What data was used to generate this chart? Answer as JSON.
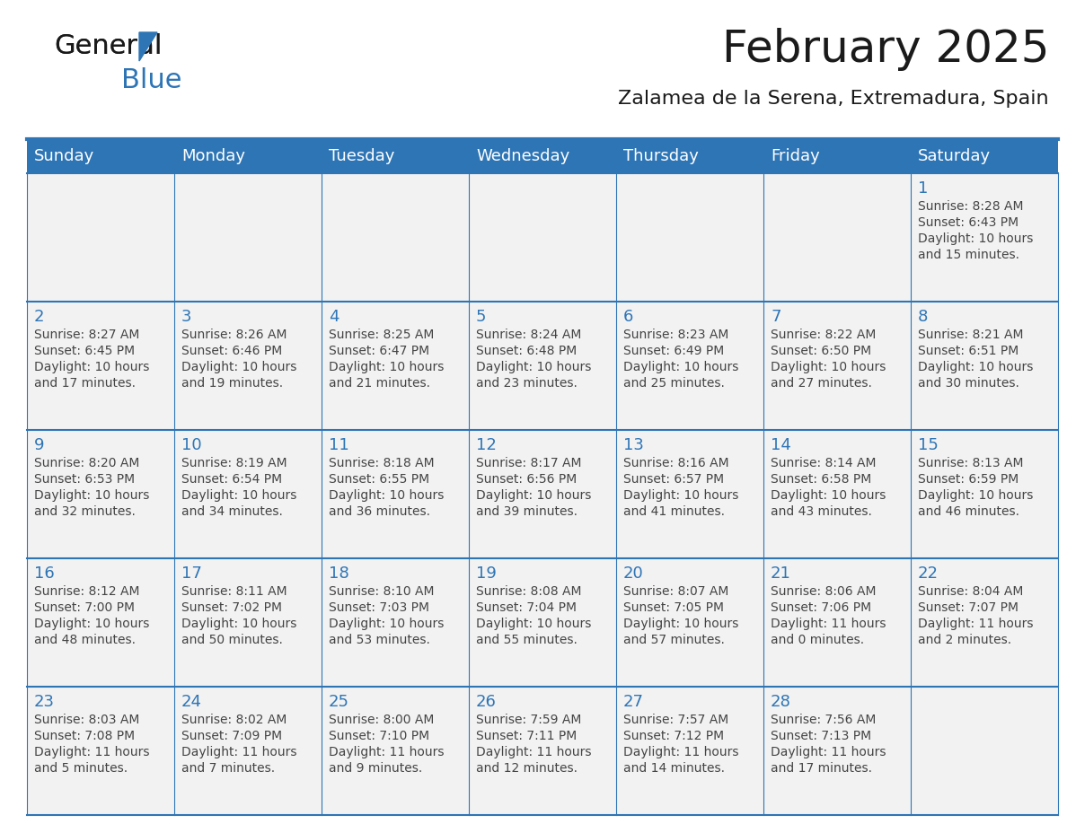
{
  "title": "February 2025",
  "subtitle": "Zalamea de la Serena, Extremadura, Spain",
  "header_bg": "#2E75B6",
  "header_text": "#FFFFFF",
  "cell_bg_light": "#F2F2F2",
  "cell_bg_white": "#FFFFFF",
  "text_color": "#333333",
  "days_of_week": [
    "Sunday",
    "Monday",
    "Tuesday",
    "Wednesday",
    "Thursday",
    "Friday",
    "Saturday"
  ],
  "calendar_data": [
    [
      null,
      null,
      null,
      null,
      null,
      null,
      {
        "day": "1",
        "sunrise": "8:28 AM",
        "sunset": "6:43 PM",
        "daylight_line1": "Daylight: 10 hours",
        "daylight_line2": "and 15 minutes."
      }
    ],
    [
      {
        "day": "2",
        "sunrise": "8:27 AM",
        "sunset": "6:45 PM",
        "daylight_line1": "Daylight: 10 hours",
        "daylight_line2": "and 17 minutes."
      },
      {
        "day": "3",
        "sunrise": "8:26 AM",
        "sunset": "6:46 PM",
        "daylight_line1": "Daylight: 10 hours",
        "daylight_line2": "and 19 minutes."
      },
      {
        "day": "4",
        "sunrise": "8:25 AM",
        "sunset": "6:47 PM",
        "daylight_line1": "Daylight: 10 hours",
        "daylight_line2": "and 21 minutes."
      },
      {
        "day": "5",
        "sunrise": "8:24 AM",
        "sunset": "6:48 PM",
        "daylight_line1": "Daylight: 10 hours",
        "daylight_line2": "and 23 minutes."
      },
      {
        "day": "6",
        "sunrise": "8:23 AM",
        "sunset": "6:49 PM",
        "daylight_line1": "Daylight: 10 hours",
        "daylight_line2": "and 25 minutes."
      },
      {
        "day": "7",
        "sunrise": "8:22 AM",
        "sunset": "6:50 PM",
        "daylight_line1": "Daylight: 10 hours",
        "daylight_line2": "and 27 minutes."
      },
      {
        "day": "8",
        "sunrise": "8:21 AM",
        "sunset": "6:51 PM",
        "daylight_line1": "Daylight: 10 hours",
        "daylight_line2": "and 30 minutes."
      }
    ],
    [
      {
        "day": "9",
        "sunrise": "8:20 AM",
        "sunset": "6:53 PM",
        "daylight_line1": "Daylight: 10 hours",
        "daylight_line2": "and 32 minutes."
      },
      {
        "day": "10",
        "sunrise": "8:19 AM",
        "sunset": "6:54 PM",
        "daylight_line1": "Daylight: 10 hours",
        "daylight_line2": "and 34 minutes."
      },
      {
        "day": "11",
        "sunrise": "8:18 AM",
        "sunset": "6:55 PM",
        "daylight_line1": "Daylight: 10 hours",
        "daylight_line2": "and 36 minutes."
      },
      {
        "day": "12",
        "sunrise": "8:17 AM",
        "sunset": "6:56 PM",
        "daylight_line1": "Daylight: 10 hours",
        "daylight_line2": "and 39 minutes."
      },
      {
        "day": "13",
        "sunrise": "8:16 AM",
        "sunset": "6:57 PM",
        "daylight_line1": "Daylight: 10 hours",
        "daylight_line2": "and 41 minutes."
      },
      {
        "day": "14",
        "sunrise": "8:14 AM",
        "sunset": "6:58 PM",
        "daylight_line1": "Daylight: 10 hours",
        "daylight_line2": "and 43 minutes."
      },
      {
        "day": "15",
        "sunrise": "8:13 AM",
        "sunset": "6:59 PM",
        "daylight_line1": "Daylight: 10 hours",
        "daylight_line2": "and 46 minutes."
      }
    ],
    [
      {
        "day": "16",
        "sunrise": "8:12 AM",
        "sunset": "7:00 PM",
        "daylight_line1": "Daylight: 10 hours",
        "daylight_line2": "and 48 minutes."
      },
      {
        "day": "17",
        "sunrise": "8:11 AM",
        "sunset": "7:02 PM",
        "daylight_line1": "Daylight: 10 hours",
        "daylight_line2": "and 50 minutes."
      },
      {
        "day": "18",
        "sunrise": "8:10 AM",
        "sunset": "7:03 PM",
        "daylight_line1": "Daylight: 10 hours",
        "daylight_line2": "and 53 minutes."
      },
      {
        "day": "19",
        "sunrise": "8:08 AM",
        "sunset": "7:04 PM",
        "daylight_line1": "Daylight: 10 hours",
        "daylight_line2": "and 55 minutes."
      },
      {
        "day": "20",
        "sunrise": "8:07 AM",
        "sunset": "7:05 PM",
        "daylight_line1": "Daylight: 10 hours",
        "daylight_line2": "and 57 minutes."
      },
      {
        "day": "21",
        "sunrise": "8:06 AM",
        "sunset": "7:06 PM",
        "daylight_line1": "Daylight: 11 hours",
        "daylight_line2": "and 0 minutes."
      },
      {
        "day": "22",
        "sunrise": "8:04 AM",
        "sunset": "7:07 PM",
        "daylight_line1": "Daylight: 11 hours",
        "daylight_line2": "and 2 minutes."
      }
    ],
    [
      {
        "day": "23",
        "sunrise": "8:03 AM",
        "sunset": "7:08 PM",
        "daylight_line1": "Daylight: 11 hours",
        "daylight_line2": "and 5 minutes."
      },
      {
        "day": "24",
        "sunrise": "8:02 AM",
        "sunset": "7:09 PM",
        "daylight_line1": "Daylight: 11 hours",
        "daylight_line2": "and 7 minutes."
      },
      {
        "day": "25",
        "sunrise": "8:00 AM",
        "sunset": "7:10 PM",
        "daylight_line1": "Daylight: 11 hours",
        "daylight_line2": "and 9 minutes."
      },
      {
        "day": "26",
        "sunrise": "7:59 AM",
        "sunset": "7:11 PM",
        "daylight_line1": "Daylight: 11 hours",
        "daylight_line2": "and 12 minutes."
      },
      {
        "day": "27",
        "sunrise": "7:57 AM",
        "sunset": "7:12 PM",
        "daylight_line1": "Daylight: 11 hours",
        "daylight_line2": "and 14 minutes."
      },
      {
        "day": "28",
        "sunrise": "7:56 AM",
        "sunset": "7:13 PM",
        "daylight_line1": "Daylight: 11 hours",
        "daylight_line2": "and 17 minutes."
      },
      null
    ]
  ],
  "logo_color_general": "#1a1a1a",
  "logo_color_blue": "#2E75B6",
  "line_color": "#2E75B6",
  "day_num_color": "#2E75B6",
  "info_text_color": "#444444",
  "title_fontsize": 36,
  "subtitle_fontsize": 16,
  "day_header_fontsize": 13,
  "day_num_fontsize": 13,
  "cell_text_fontsize": 10
}
